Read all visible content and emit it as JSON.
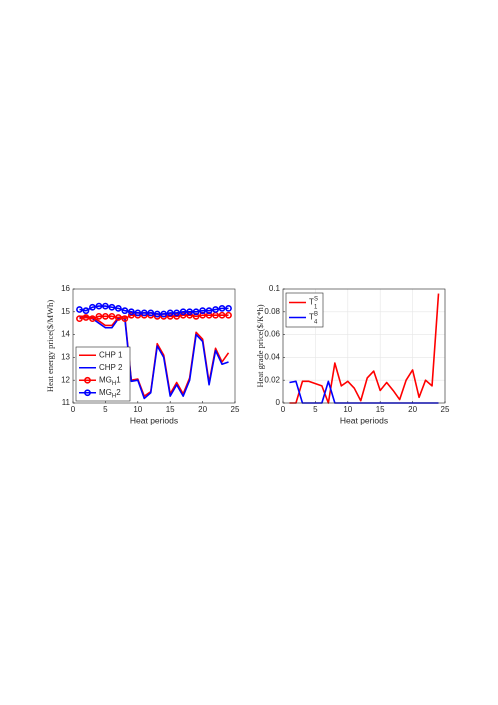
{
  "chart_data": [
    {
      "type": "line",
      "ylabel": "Heat energy price($/MWh)",
      "xlabel": "Heat periods",
      "x": [
        1,
        2,
        3,
        4,
        5,
        6,
        7,
        8,
        9,
        10,
        11,
        12,
        13,
        14,
        15,
        16,
        17,
        18,
        19,
        20,
        21,
        22,
        23,
        24
      ],
      "xlim": [
        0,
        25
      ],
      "xticks": [
        0,
        5,
        10,
        15,
        20,
        25
      ],
      "ylim": [
        11,
        16
      ],
      "yticks": [
        11,
        12,
        13,
        14,
        15,
        16
      ],
      "grid": false,
      "legend": "lower left",
      "series": [
        {
          "name": "CHP 1",
          "color": "#ff0000",
          "marker": "none",
          "values": [
            14.8,
            14.8,
            14.75,
            14.6,
            14.4,
            14.4,
            14.75,
            14.8,
            12.0,
            12.05,
            11.3,
            11.5,
            13.6,
            13.1,
            11.4,
            11.9,
            11.4,
            12.1,
            14.1,
            13.8,
            11.9,
            13.4,
            12.8,
            13.2
          ]
        },
        {
          "name": "CHP 2",
          "color": "#0000ff",
          "marker": "none",
          "values": [
            14.75,
            14.75,
            14.7,
            14.5,
            14.3,
            14.3,
            14.7,
            14.7,
            11.95,
            12.0,
            11.2,
            11.45,
            13.5,
            13.0,
            11.3,
            11.8,
            11.3,
            12.0,
            14.0,
            13.7,
            11.8,
            13.3,
            12.7,
            12.8
          ]
        },
        {
          "name": "MG",
          "subscript": "H",
          "suffix": "1",
          "color": "#ff0000",
          "marker": "circle",
          "values": [
            14.7,
            14.75,
            14.7,
            14.8,
            14.8,
            14.8,
            14.75,
            14.7,
            14.85,
            14.85,
            14.85,
            14.85,
            14.8,
            14.8,
            14.8,
            14.8,
            14.85,
            14.85,
            14.8,
            14.85,
            14.85,
            14.85,
            14.85,
            14.85
          ]
        },
        {
          "name": "MG",
          "subscript": "H",
          "suffix": "2",
          "color": "#0000ff",
          "marker": "circle",
          "values": [
            15.1,
            15.05,
            15.2,
            15.25,
            15.25,
            15.2,
            15.15,
            15.05,
            15.0,
            14.95,
            14.95,
            14.95,
            14.9,
            14.9,
            14.95,
            14.95,
            15.0,
            15.0,
            15.0,
            15.05,
            15.05,
            15.1,
            15.15,
            15.15
          ]
        }
      ]
    },
    {
      "type": "line",
      "ylabel": "Heat grade price($/K*h)",
      "xlabel": "Heat periods",
      "x": [
        1,
        2,
        3,
        4,
        5,
        6,
        7,
        8,
        9,
        10,
        11,
        12,
        13,
        14,
        15,
        16,
        17,
        18,
        19,
        20,
        21,
        22,
        23,
        24
      ],
      "xlim": [
        0,
        25
      ],
      "xticks": [
        0,
        5,
        10,
        15,
        20,
        25
      ],
      "ylim": [
        0,
        0.1
      ],
      "yticks": [
        0,
        0.02,
        0.04,
        0.06,
        0.08,
        0.1
      ],
      "grid": true,
      "legend": "upper left",
      "series": [
        {
          "name": "T",
          "superscript": "S",
          "subscript": "1",
          "color": "#ff0000",
          "marker": "none",
          "values": [
            0,
            0,
            0.019,
            0.019,
            0.017,
            0.015,
            0,
            0.035,
            0.015,
            0.019,
            0.013,
            0.002,
            0.022,
            0.028,
            0.011,
            0.018,
            0.011,
            0.003,
            0.02,
            0.029,
            0.005,
            0.02,
            0.015,
            0.096
          ]
        },
        {
          "name": "T",
          "superscript": "B",
          "subscript": "4",
          "color": "#0000ff",
          "marker": "none",
          "values": [
            0.018,
            0.019,
            0,
            0,
            0,
            0,
            0.019,
            0,
            0,
            0,
            0,
            0,
            0,
            0,
            0,
            0,
            0,
            0,
            0,
            0,
            0,
            0,
            0,
            0
          ]
        }
      ]
    }
  ]
}
